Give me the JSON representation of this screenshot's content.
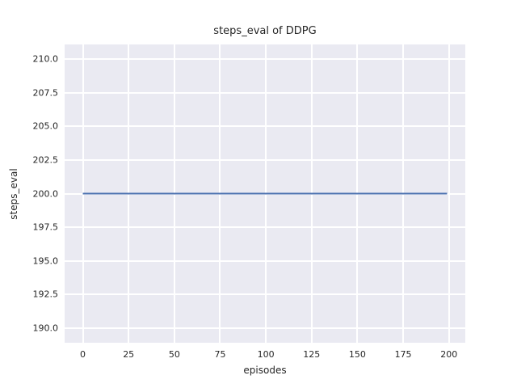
{
  "chart_data": {
    "type": "line",
    "title": "steps_eval of DDPG",
    "xlabel": "episodes",
    "ylabel": "steps_eval",
    "x_tick_values": [
      0,
      25,
      50,
      75,
      100,
      125,
      150,
      175,
      200
    ],
    "x_tick_labels": [
      "0",
      "25",
      "50",
      "75",
      "100",
      "125",
      "150",
      "175",
      "200"
    ],
    "y_tick_values": [
      190.0,
      192.5,
      195.0,
      197.5,
      200.0,
      202.5,
      205.0,
      207.5,
      210.0
    ],
    "y_tick_labels": [
      "190.0",
      "192.5",
      "195.0",
      "197.5",
      "200.0",
      "202.5",
      "205.0",
      "207.5",
      "210.0"
    ],
    "xlim": [
      -9.95,
      208.95
    ],
    "ylim": [
      188.9,
      211.1
    ],
    "grid": true,
    "legend": "none",
    "colors": {
      "plot_background": "#eaeaf2",
      "grid_color": "#ffffff",
      "line_color": "#4c72b0",
      "text_color": "#262626",
      "figure_background": "#ffffff"
    },
    "series": [
      {
        "name": "DDPG steps_eval",
        "x": [
          0,
          199
        ],
        "y": [
          200.0,
          200.0
        ],
        "note": "constant value 200 for all 200 episodes"
      }
    ]
  }
}
